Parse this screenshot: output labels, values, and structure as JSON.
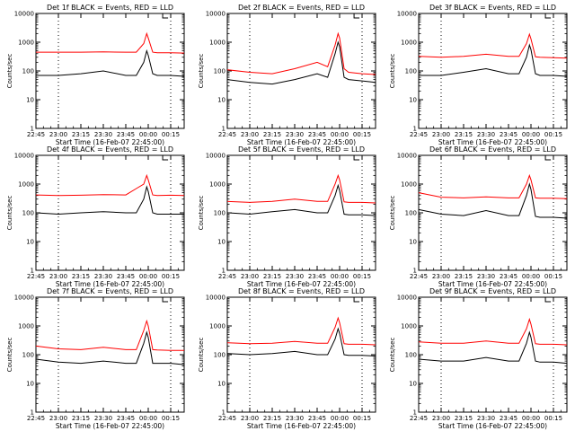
{
  "figure": {
    "x_tick_labels": [
      "22:45",
      "23:00",
      "23:15",
      "23:30",
      "23:45",
      "00:00",
      "00:15"
    ],
    "y_tick_labels": [
      "1",
      "10",
      "100",
      "1000",
      "10000"
    ]
  },
  "chart_data": [
    {
      "type": "line",
      "title": "Det 1f  BLACK = Events, RED = LLD",
      "xlabel": "Start Time (16-Feb-07 22:45:00)",
      "ylabel": "Counts/sec",
      "y_scale": "log",
      "ylim": [
        1,
        10000
      ],
      "xlim": [
        "22:45",
        "00:24"
      ],
      "series": [
        {
          "color": "#000000",
          "x": [
            "22:45",
            "23:00",
            "23:15",
            "23:30",
            "23:45",
            "23:52",
            "23:57",
            "23:59",
            "00:00",
            "00:03",
            "00:06",
            "00:15",
            "00:24"
          ],
          "values": [
            70,
            70,
            80,
            100,
            70,
            70,
            200,
            500,
            350,
            80,
            70,
            70,
            65
          ]
        },
        {
          "color": "#ff0000",
          "x": [
            "22:45",
            "23:00",
            "23:15",
            "23:30",
            "23:45",
            "23:52",
            "23:57",
            "23:59",
            "00:00",
            "00:03",
            "00:06",
            "00:15",
            "00:24"
          ],
          "values": [
            450,
            450,
            450,
            460,
            450,
            450,
            900,
            2000,
            1400,
            450,
            430,
            430,
            420
          ]
        }
      ]
    },
    {
      "type": "line",
      "title": "Det 2f  BLACK = Events, RED = LLD",
      "xlabel": "Start Time (16-Feb-07 22:45:00)",
      "ylabel": "Counts/sec",
      "y_scale": "log",
      "ylim": [
        1,
        10000
      ],
      "xlim": [
        "22:45",
        "00:24"
      ],
      "series": [
        {
          "color": "#000000",
          "x": [
            "22:45",
            "23:00",
            "23:15",
            "23:30",
            "23:45",
            "23:52",
            "23:57",
            "23:59",
            "00:00",
            "00:03",
            "00:06",
            "00:15",
            "00:24"
          ],
          "values": [
            50,
            40,
            35,
            50,
            80,
            60,
            400,
            1000,
            700,
            60,
            50,
            45,
            40
          ]
        },
        {
          "color": "#ff0000",
          "x": [
            "22:45",
            "23:00",
            "23:15",
            "23:30",
            "23:45",
            "23:52",
            "23:57",
            "23:59",
            "00:00",
            "00:03",
            "00:06",
            "00:15",
            "00:24"
          ],
          "values": [
            110,
            90,
            80,
            120,
            200,
            140,
            800,
            2000,
            1400,
            120,
            90,
            80,
            75
          ]
        }
      ]
    },
    {
      "type": "line",
      "title": "Det 3f  BLACK = Events, RED = LLD",
      "xlabel": "Start Time (16-Feb-07 22:45:00)",
      "ylabel": "Counts/sec",
      "y_scale": "log",
      "ylim": [
        1,
        10000
      ],
      "xlim": [
        "22:45",
        "00:24"
      ],
      "series": [
        {
          "color": "#000000",
          "x": [
            "22:45",
            "23:00",
            "23:15",
            "23:30",
            "23:45",
            "23:52",
            "23:57",
            "23:59",
            "00:00",
            "00:03",
            "00:06",
            "00:15",
            "00:24"
          ],
          "values": [
            70,
            70,
            90,
            120,
            80,
            80,
            300,
            800,
            550,
            80,
            70,
            70,
            65
          ]
        },
        {
          "color": "#ff0000",
          "x": [
            "22:45",
            "23:00",
            "23:15",
            "23:30",
            "23:45",
            "23:52",
            "23:57",
            "23:59",
            "00:00",
            "00:03",
            "00:06",
            "00:15",
            "00:24"
          ],
          "values": [
            320,
            300,
            320,
            380,
            320,
            320,
            900,
            1900,
            1300,
            310,
            300,
            290,
            280
          ]
        }
      ]
    },
    {
      "type": "line",
      "title": "Det 4f  BLACK = Events, RED = LLD",
      "xlabel": "Start Time (16-Feb-07 22:45:00)",
      "ylabel": "Counts/sec",
      "y_scale": "log",
      "ylim": [
        1,
        10000
      ],
      "xlim": [
        "22:45",
        "00:24"
      ],
      "series": [
        {
          "color": "#000000",
          "x": [
            "22:45",
            "23:00",
            "23:15",
            "23:30",
            "23:45",
            "23:52",
            "23:57",
            "23:59",
            "00:00",
            "00:03",
            "00:06",
            "00:15",
            "00:24"
          ],
          "values": [
            100,
            90,
            100,
            110,
            100,
            100,
            300,
            800,
            550,
            100,
            90,
            90,
            90
          ]
        },
        {
          "color": "#ff0000",
          "x": [
            "22:45",
            "23:00",
            "23:15",
            "23:30",
            "23:45",
            "23:52",
            "23:57",
            "23:59",
            "00:00",
            "00:03",
            "00:06",
            "00:15",
            "00:24"
          ],
          "values": [
            420,
            400,
            410,
            430,
            420,
            700,
            1000,
            2000,
            1400,
            420,
            400,
            410,
            400
          ]
        }
      ]
    },
    {
      "type": "line",
      "title": "Det 5f  BLACK = Events, RED = LLD",
      "xlabel": "Start Time (16-Feb-07 22:45:00)",
      "ylabel": "Counts/sec",
      "y_scale": "log",
      "ylim": [
        1,
        10000
      ],
      "xlim": [
        "22:45",
        "00:24"
      ],
      "series": [
        {
          "color": "#000000",
          "x": [
            "22:45",
            "23:00",
            "23:15",
            "23:30",
            "23:45",
            "23:52",
            "23:57",
            "23:59",
            "00:00",
            "00:03",
            "00:06",
            "00:15",
            "00:24"
          ],
          "values": [
            100,
            90,
            110,
            130,
            100,
            100,
            400,
            900,
            600,
            90,
            85,
            85,
            80
          ]
        },
        {
          "color": "#ff0000",
          "x": [
            "22:45",
            "23:00",
            "23:15",
            "23:30",
            "23:45",
            "23:52",
            "23:57",
            "23:59",
            "00:00",
            "00:03",
            "00:06",
            "00:15",
            "00:24"
          ],
          "values": [
            250,
            230,
            250,
            300,
            250,
            250,
            1000,
            2000,
            1400,
            240,
            230,
            230,
            220
          ]
        }
      ]
    },
    {
      "type": "line",
      "title": "Det 6f  BLACK = Events, RED = LLD",
      "xlabel": "Start Time (16-Feb-07 22:45:00)",
      "ylabel": "Counts/sec",
      "y_scale": "log",
      "ylim": [
        1,
        10000
      ],
      "xlim": [
        "22:45",
        "00:24"
      ],
      "series": [
        {
          "color": "#000000",
          "x": [
            "22:45",
            "23:00",
            "23:15",
            "23:30",
            "23:45",
            "23:52",
            "23:57",
            "23:59",
            "00:00",
            "00:03",
            "00:06",
            "00:15",
            "00:24"
          ],
          "values": [
            130,
            90,
            80,
            120,
            80,
            80,
            400,
            1000,
            650,
            75,
            70,
            70,
            65
          ]
        },
        {
          "color": "#ff0000",
          "x": [
            "22:45",
            "23:00",
            "23:15",
            "23:30",
            "23:45",
            "23:52",
            "23:57",
            "23:59",
            "00:00",
            "00:03",
            "00:06",
            "00:15",
            "00:24"
          ],
          "values": [
            500,
            350,
            330,
            360,
            330,
            330,
            1000,
            2000,
            1400,
            330,
            320,
            320,
            310
          ]
        }
      ]
    },
    {
      "type": "line",
      "title": "Det 7f  BLACK = Events, RED = LLD",
      "xlabel": "Start Time (16-Feb-07 22:45:00)",
      "ylabel": "Counts/sec",
      "y_scale": "log",
      "ylim": [
        1,
        10000
      ],
      "xlim": [
        "22:45",
        "00:24"
      ],
      "series": [
        {
          "color": "#000000",
          "x": [
            "22:45",
            "23:00",
            "23:15",
            "23:30",
            "23:45",
            "23:52",
            "23:57",
            "23:59",
            "00:00",
            "00:03",
            "00:06",
            "00:15",
            "00:24"
          ],
          "values": [
            70,
            55,
            50,
            60,
            50,
            50,
            250,
            600,
            400,
            50,
            50,
            50,
            45
          ]
        },
        {
          "color": "#ff0000",
          "x": [
            "22:45",
            "23:00",
            "23:15",
            "23:30",
            "23:45",
            "23:52",
            "23:57",
            "23:59",
            "00:00",
            "00:03",
            "00:06",
            "00:15",
            "00:24"
          ],
          "values": [
            200,
            160,
            150,
            180,
            150,
            150,
            700,
            1500,
            1000,
            150,
            145,
            140,
            140
          ]
        }
      ]
    },
    {
      "type": "line",
      "title": "Det 8f  BLACK = Events, RED = LLD",
      "xlabel": "Start Time (16-Feb-07 22:45:00)",
      "ylabel": "Counts/sec",
      "y_scale": "log",
      "ylim": [
        1,
        10000
      ],
      "xlim": [
        "22:45",
        "00:24"
      ],
      "series": [
        {
          "color": "#000000",
          "x": [
            "22:45",
            "23:00",
            "23:15",
            "23:30",
            "23:45",
            "23:52",
            "23:57",
            "23:59",
            "00:00",
            "00:03",
            "00:06",
            "00:15",
            "00:24"
          ],
          "values": [
            110,
            100,
            110,
            130,
            100,
            100,
            350,
            800,
            550,
            100,
            95,
            95,
            90
          ]
        },
        {
          "color": "#ff0000",
          "x": [
            "22:45",
            "23:00",
            "23:15",
            "23:30",
            "23:45",
            "23:52",
            "23:57",
            "23:59",
            "00:00",
            "00:03",
            "00:06",
            "00:15",
            "00:24"
          ],
          "values": [
            260,
            240,
            250,
            290,
            250,
            250,
            900,
            1900,
            1300,
            240,
            230,
            230,
            220
          ]
        }
      ]
    },
    {
      "type": "line",
      "title": "Det 9f  BLACK = Events, RED = LLD",
      "xlabel": "Start Time (16-Feb-07 22:45:00)",
      "ylabel": "Counts/sec",
      "y_scale": "log",
      "ylim": [
        1,
        10000
      ],
      "xlim": [
        "22:45",
        "00:24"
      ],
      "series": [
        {
          "color": "#000000",
          "x": [
            "22:45",
            "23:00",
            "23:15",
            "23:30",
            "23:45",
            "23:52",
            "23:57",
            "23:59",
            "00:00",
            "00:03",
            "00:06",
            "00:15",
            "00:24"
          ],
          "values": [
            70,
            60,
            60,
            80,
            60,
            60,
            250,
            600,
            400,
            60,
            55,
            55,
            50
          ]
        },
        {
          "color": "#ff0000",
          "x": [
            "22:45",
            "23:00",
            "23:15",
            "23:30",
            "23:45",
            "23:52",
            "23:57",
            "23:59",
            "00:00",
            "00:03",
            "00:06",
            "00:15",
            "00:24"
          ],
          "values": [
            280,
            250,
            250,
            300,
            250,
            250,
            800,
            1700,
            1150,
            240,
            230,
            230,
            220
          ]
        }
      ]
    }
  ]
}
